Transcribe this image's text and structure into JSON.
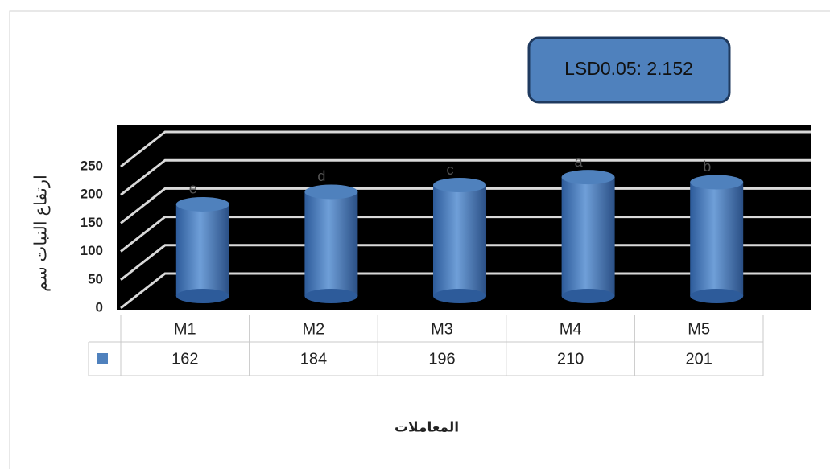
{
  "chart_data": {
    "type": "bar",
    "categories": [
      "M1",
      "M2",
      "M3",
      "M4",
      "M5"
    ],
    "values": [
      162,
      184,
      196,
      210,
      201
    ],
    "letters": [
      "e",
      "d",
      "c",
      "a",
      "b"
    ],
    "color": "#4f81bd",
    "ylim": [
      0,
      250
    ],
    "yticks": [
      0,
      50,
      100,
      150,
      200,
      250
    ],
    "grid": true,
    "y_label": "ارتفاع النبات سم",
    "x_label": "المعاملات",
    "annotation": "LSD0.05: 2.152"
  }
}
